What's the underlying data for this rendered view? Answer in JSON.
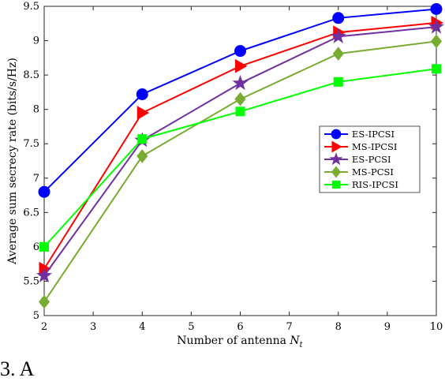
{
  "chart_data": {
    "type": "line",
    "title": "",
    "xlabel": "Number of antenna",
    "xlabel_symbol": "N",
    "xlabel_subscript": "t",
    "ylabel": "Average sum secrecy rate (bits/s/Hz)",
    "xlim": [
      2,
      10
    ],
    "ylim": [
      5,
      9.5
    ],
    "xticks": [
      2,
      3,
      4,
      5,
      6,
      7,
      8,
      9,
      10
    ],
    "yticks": [
      5,
      5.5,
      6,
      6.5,
      7,
      7.5,
      8,
      8.5,
      9,
      9.5
    ],
    "grid": false,
    "legend_position": "center-right",
    "x": [
      2,
      4,
      6,
      8,
      10
    ],
    "series": [
      {
        "name": "ES-IPCSI",
        "color": "#0000ff",
        "marker": "circle",
        "values": [
          6.8,
          8.22,
          8.85,
          9.33,
          9.46
        ]
      },
      {
        "name": "MS-IPCSI",
        "color": "#ff0000",
        "marker": "triangle-right",
        "values": [
          5.68,
          7.95,
          8.63,
          9.12,
          9.26
        ]
      },
      {
        "name": "ES-PCSI",
        "color": "#7030a0",
        "marker": "star",
        "values": [
          5.58,
          7.55,
          8.38,
          9.06,
          9.2
        ]
      },
      {
        "name": "MS-PCSI",
        "color": "#77ac30",
        "marker": "diamond",
        "values": [
          5.2,
          7.32,
          8.15,
          8.81,
          8.99
        ]
      },
      {
        "name": "RIS-IPCSI",
        "color": "#00ff00",
        "marker": "square",
        "values": [
          6.0,
          7.57,
          7.97,
          8.4,
          8.59
        ]
      }
    ]
  },
  "caption_text": "3. A"
}
